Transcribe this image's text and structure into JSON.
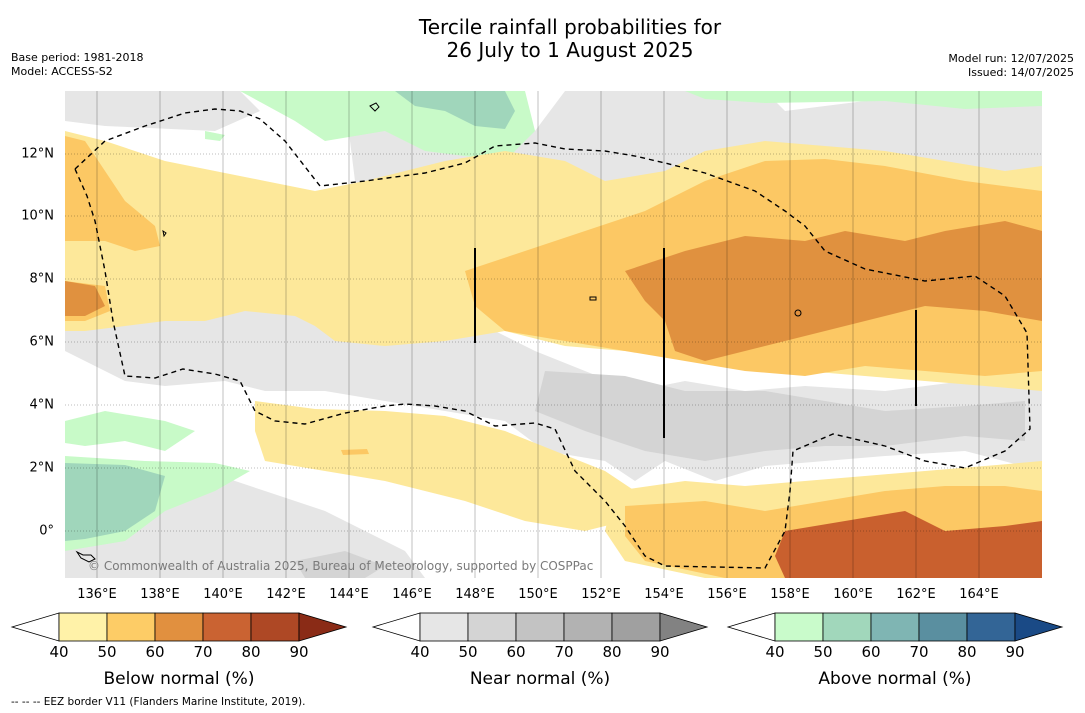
{
  "title": {
    "line1": "Tercile rainfall probabilities for",
    "line2": "26 July to 1 August 2025"
  },
  "meta_left": {
    "base_period": "Base period: 1981-2018",
    "model": "Model: ACCESS-S2"
  },
  "meta_right": {
    "model_run": "Model run: 12/07/2025",
    "issued": "Issued: 14/07/2025"
  },
  "map": {
    "copyright": "© Commonwealth of Australia 2025, Bureau of Meteorology, supported by COSPPac",
    "lon_labels": [
      "136°E",
      "138°E",
      "140°E",
      "142°E",
      "144°E",
      "146°E",
      "148°E",
      "150°E",
      "152°E",
      "154°E",
      "156°E",
      "158°E",
      "160°E",
      "162°E",
      "164°E"
    ],
    "lat_labels": [
      "12°N",
      "10°N",
      "8°N",
      "6°N",
      "4°N",
      "2°N",
      "0°"
    ],
    "colors": {
      "land_bg": "#ffffff",
      "below_40": "#fde89a",
      "below_50": "#fcc864",
      "below_60": "#e0913f",
      "below_70": "#c9602e",
      "near_40": "#e6e6e6",
      "near_50": "#d2d2d2",
      "above_40": "#c8fac8",
      "above_50": "#a0d6bb",
      "above_60": "#7fb5b2"
    }
  },
  "colorbars": [
    {
      "label": "Below normal (%)",
      "ticks": [
        "40",
        "50",
        "60",
        "70",
        "80",
        "90"
      ],
      "colors": [
        "#fff2a8",
        "#fdcc66",
        "#e1903f",
        "#ca6332",
        "#ae4825"
      ],
      "extend_low": "#ffffff",
      "extend_high": "#8a2b16"
    },
    {
      "label": "Near normal (%)",
      "ticks": [
        "40",
        "50",
        "60",
        "70",
        "80",
        "90"
      ],
      "colors": [
        "#e6e6e6",
        "#d4d4d4",
        "#c3c3c3",
        "#b2b2b2",
        "#a0a0a0"
      ],
      "extend_low": "#ffffff",
      "extend_high": "#828282"
    },
    {
      "label": "Above normal (%)",
      "ticks": [
        "40",
        "50",
        "60",
        "70",
        "80",
        "90"
      ],
      "colors": [
        "#c9fbcb",
        "#a1d7bb",
        "#7fb5b3",
        "#5a8fa0",
        "#336596"
      ],
      "extend_low": "#ffffff",
      "extend_high": "#1a4a86"
    }
  ],
  "legend_note": "--  --  -- EEZ border V11 (Flanders Marine Institute, 2019)."
}
